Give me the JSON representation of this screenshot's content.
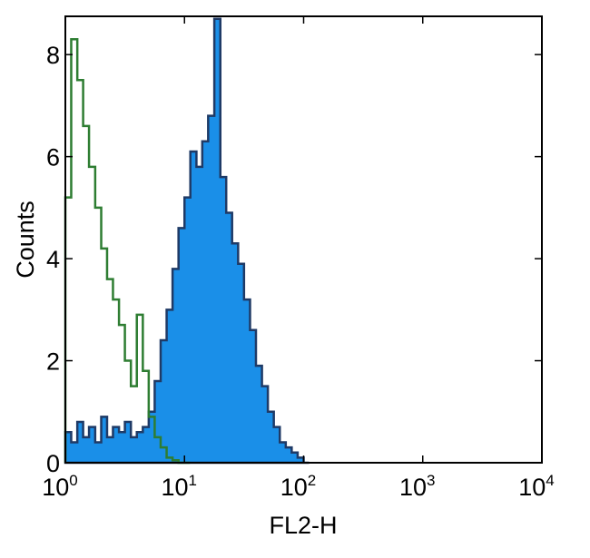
{
  "chart_data": {
    "type": "area",
    "title": "",
    "xlabel": "FL2-H",
    "ylabel": "Counts",
    "x_scale": "log",
    "xlim": [
      1,
      10000
    ],
    "ylim": [
      0,
      8.75
    ],
    "grid": false,
    "x_ticks": [
      {
        "base": "10",
        "exp": "0"
      },
      {
        "base": "10",
        "exp": "1"
      },
      {
        "base": "10",
        "exp": "2"
      },
      {
        "base": "10",
        "exp": "3"
      },
      {
        "base": "10",
        "exp": "4"
      }
    ],
    "y_ticks": [
      "0",
      "2",
      "4",
      "6",
      "8"
    ],
    "series": [
      {
        "style": "filled",
        "fill": "#1a8fe8",
        "stroke": "#1f3a66",
        "x": [
          1,
          1.12,
          1.26,
          1.41,
          1.58,
          1.78,
          2,
          2.24,
          2.51,
          2.82,
          3.16,
          3.55,
          3.98,
          4.47,
          5.01,
          5.62,
          6.31,
          7.08,
          7.94,
          8.91,
          10,
          11.2,
          12.6,
          14.1,
          15.8,
          17.8,
          20,
          22.4,
          25.1,
          28.2,
          31.6,
          35.5,
          39.8,
          44.7,
          50.1,
          56.2,
          63.1,
          70.8,
          79.4,
          89.1,
          100
        ],
        "values": [
          0.6,
          0.4,
          0.8,
          0.5,
          0.7,
          0.4,
          0.9,
          0.5,
          0.7,
          0.6,
          0.8,
          0.5,
          0.6,
          0.7,
          1.0,
          1.6,
          2.4,
          3.0,
          3.8,
          4.6,
          5.2,
          6.1,
          5.8,
          6.3,
          6.8,
          8.7,
          5.6,
          4.9,
          4.3,
          3.9,
          3.2,
          2.6,
          1.9,
          1.5,
          1.0,
          0.7,
          0.4,
          0.3,
          0.2,
          0.1,
          0
        ]
      },
      {
        "style": "outline",
        "stroke": "#2e7d32",
        "x": [
          1,
          1.12,
          1.26,
          1.41,
          1.58,
          1.78,
          2,
          2.24,
          2.51,
          2.82,
          3.16,
          3.55,
          3.98,
          4.47,
          5.01,
          5.62,
          6.31,
          7.08,
          7.94,
          8.91,
          10
        ],
        "values": [
          5.2,
          8.3,
          7.5,
          6.6,
          5.8,
          5.0,
          4.2,
          3.6,
          3.2,
          2.7,
          2.0,
          1.5,
          2.9,
          1.8,
          0.9,
          0.5,
          0.3,
          0.1,
          0.05,
          0,
          0
        ]
      }
    ]
  }
}
